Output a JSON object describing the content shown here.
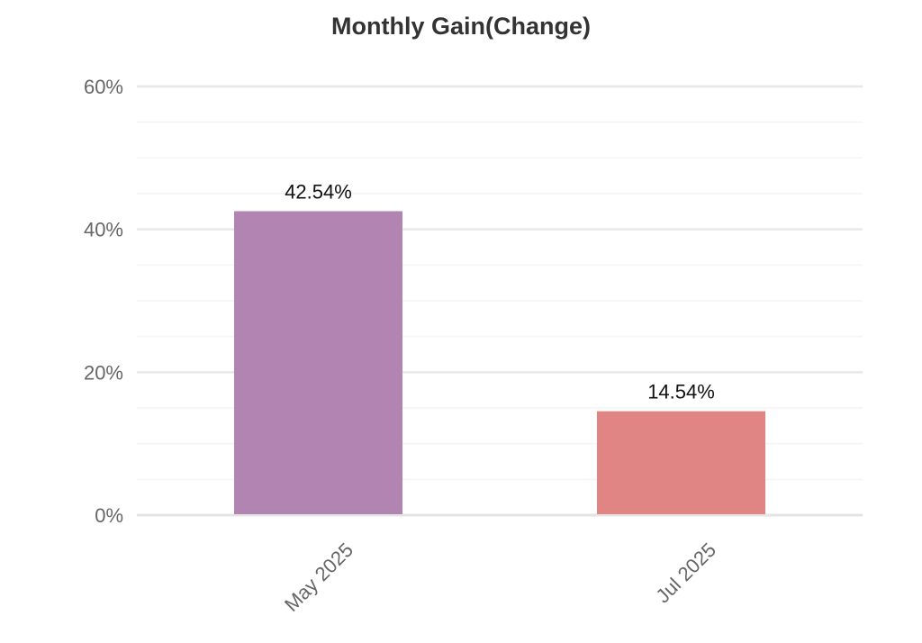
{
  "chart_data": {
    "type": "bar",
    "title": "Monthly Gain(Change)",
    "xlabel": "",
    "ylabel": "",
    "categories": [
      "May 2025",
      "Jul 2025"
    ],
    "values": [
      42.54,
      14.54
    ],
    "data_labels": [
      "42.54%",
      "14.54%"
    ],
    "bar_colors": [
      "#b284b2",
      "#e08583"
    ],
    "ylim": [
      0,
      60
    ],
    "yticks": [
      0,
      20,
      40,
      60
    ],
    "ytick_labels": [
      "0%",
      "20%",
      "40%",
      "60%"
    ],
    "grid": true,
    "legend": "none"
  }
}
